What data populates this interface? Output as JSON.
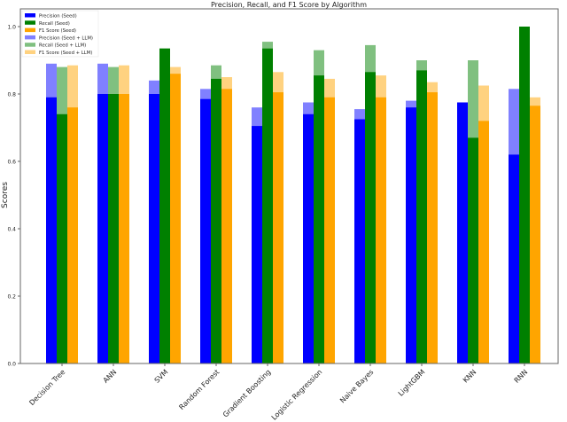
{
  "chart_data": {
    "type": "bar",
    "title": "Precision, Recall, and F1 Score by Algorithm",
    "xlabel": "",
    "ylabel": "Scores",
    "ylim": [
      0,
      1.05
    ],
    "yticks": [
      "0.0",
      "0.2",
      "0.4",
      "0.6",
      "0.8",
      "1.0"
    ],
    "grid": false,
    "legend_position": "top-left",
    "categories": [
      "Decision Tree",
      "ANN",
      "SVM",
      "Random Forest",
      "Gradient Boosting",
      "Logistic Regression",
      "Naive Bayes",
      "LightGBM",
      "KNN",
      "RNN"
    ],
    "series": [
      {
        "name": "Precision (Seed)",
        "color": "#0000ff",
        "offset": -1,
        "layer": "seed",
        "values": [
          0.79,
          0.8,
          0.8,
          0.785,
          0.705,
          0.74,
          0.725,
          0.76,
          0.775,
          0.62
        ]
      },
      {
        "name": "Recall (Seed)",
        "color": "#008000",
        "offset": 0,
        "layer": "seed",
        "values": [
          0.74,
          0.8,
          0.935,
          0.845,
          0.935,
          0.855,
          0.865,
          0.87,
          0.67,
          1.0
        ]
      },
      {
        "name": "F1 Score (Seed)",
        "color": "#ffa500",
        "offset": 1,
        "layer": "seed",
        "values": [
          0.76,
          0.8,
          0.86,
          0.815,
          0.805,
          0.79,
          0.79,
          0.805,
          0.72,
          0.765
        ]
      },
      {
        "name": "Precision (Seed + LLM)",
        "color": "#8080ff",
        "offset": -1,
        "layer": "llm",
        "values": [
          0.89,
          0.89,
          0.84,
          0.815,
          0.76,
          0.775,
          0.755,
          0.78,
          0.775,
          0.815
        ]
      },
      {
        "name": "Recall (Seed + LLM)",
        "color": "#80c080",
        "offset": 0,
        "layer": "llm",
        "values": [
          0.88,
          0.88,
          0.935,
          0.885,
          0.955,
          0.93,
          0.945,
          0.9,
          0.9,
          1.0
        ]
      },
      {
        "name": "F1 Score (Seed + LLM)",
        "color": "#ffd280",
        "offset": 1,
        "layer": "llm",
        "values": [
          0.885,
          0.885,
          0.88,
          0.85,
          0.865,
          0.845,
          0.855,
          0.835,
          0.825,
          0.79
        ]
      }
    ]
  }
}
